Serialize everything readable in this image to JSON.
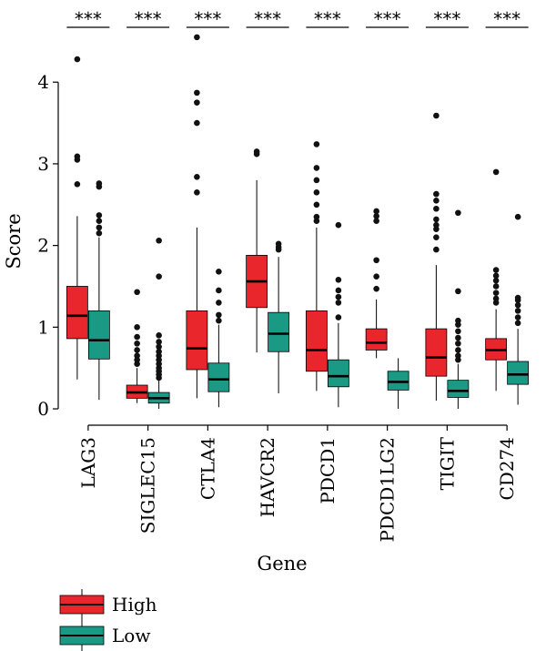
{
  "chart_data": {
    "type": "box",
    "title": "",
    "xlabel": "Gene",
    "ylabel": "Score",
    "ylim": [
      -0.1,
      4.95
    ],
    "yticks": [
      0,
      1,
      2,
      3,
      4
    ],
    "yticks_labels": [
      "0",
      "1",
      "2",
      "3",
      "4"
    ],
    "categories": [
      "LAG3",
      "SIGLEC15",
      "CTLA4",
      "HAVCR2",
      "PDCD1",
      "PDCD1LG2",
      "TIGIT",
      "CD274"
    ],
    "significance": [
      "***",
      "***",
      "***",
      "***",
      "***",
      "***",
      "***",
      "***"
    ],
    "legend": {
      "position": "bottom-left",
      "entries": [
        {
          "label": "High",
          "color": "#e8262b"
        },
        {
          "label": "Low",
          "color": "#1a9a85"
        }
      ]
    },
    "series": [
      {
        "name": "High",
        "color": "#e8262b",
        "boxes": [
          {
            "min": 0.36,
            "q1": 0.86,
            "median": 1.14,
            "q3": 1.5,
            "max": 2.36,
            "outliers": [
              2.75,
              3.05,
              3.09,
              4.28
            ]
          },
          {
            "min": 0.07,
            "q1": 0.13,
            "median": 0.2,
            "q3": 0.29,
            "max": 0.5,
            "outliers": [
              0.55,
              0.6,
              0.65,
              0.72,
              0.8,
              0.88,
              1.0,
              1.43
            ]
          },
          {
            "min": 0.13,
            "q1": 0.48,
            "median": 0.74,
            "q3": 1.2,
            "max": 2.22,
            "outliers": [
              2.65,
              2.84,
              3.5,
              3.75,
              3.87,
              4.55
            ]
          },
          {
            "min": 0.69,
            "q1": 1.24,
            "median": 1.56,
            "q3": 1.88,
            "max": 2.8,
            "outliers": [
              3.12,
              3.15
            ]
          },
          {
            "min": 0.22,
            "q1": 0.46,
            "median": 0.72,
            "q3": 1.2,
            "max": 2.22,
            "outliers": [
              2.3,
              2.35,
              2.5,
              2.65,
              2.8,
              2.95,
              3.24
            ]
          },
          {
            "min": 0.62,
            "q1": 0.72,
            "median": 0.81,
            "q3": 0.98,
            "max": 1.34,
            "outliers": [
              1.47,
              1.62,
              1.82,
              2.3,
              2.36,
              2.42
            ]
          },
          {
            "min": 0.1,
            "q1": 0.4,
            "median": 0.63,
            "q3": 0.98,
            "max": 1.76,
            "outliers": [
              1.95,
              2.1,
              2.2,
              2.25,
              2.32,
              2.45,
              2.55,
              2.63,
              3.59
            ]
          },
          {
            "min": 0.22,
            "q1": 0.6,
            "median": 0.72,
            "q3": 0.86,
            "max": 1.22,
            "outliers": [
              1.3,
              1.35,
              1.42,
              1.5,
              1.57,
              1.63,
              1.7,
              2.9
            ]
          }
        ]
      },
      {
        "name": "Low",
        "color": "#1a9a85",
        "boxes": [
          {
            "min": 0.11,
            "q1": 0.61,
            "median": 0.84,
            "q3": 1.2,
            "max": 2.1,
            "outliers": [
              2.15,
              2.22,
              2.3,
              2.37,
              2.72,
              2.76
            ]
          },
          {
            "min": 0.0,
            "q1": 0.07,
            "median": 0.13,
            "q3": 0.2,
            "max": 0.35,
            "outliers": [
              0.38,
              0.42,
              0.46,
              0.5,
              0.55,
              0.6,
              0.65,
              0.7,
              0.76,
              0.82,
              0.9,
              1.62,
              2.06
            ]
          },
          {
            "min": 0.02,
            "q1": 0.21,
            "median": 0.36,
            "q3": 0.56,
            "max": 1.03,
            "outliers": [
              1.08,
              1.15,
              1.3,
              1.45,
              1.68
            ]
          },
          {
            "min": 0.19,
            "q1": 0.7,
            "median": 0.92,
            "q3": 1.18,
            "max": 1.86,
            "outliers": [
              1.95,
              1.98,
              2.02
            ]
          },
          {
            "min": 0.02,
            "q1": 0.27,
            "median": 0.4,
            "q3": 0.6,
            "max": 1.05,
            "outliers": [
              1.12,
              1.3,
              1.37,
              1.45,
              1.58,
              2.25
            ]
          },
          {
            "min": 0.0,
            "q1": 0.23,
            "median": 0.33,
            "q3": 0.46,
            "max": 0.62,
            "outliers": []
          },
          {
            "min": 0.0,
            "q1": 0.14,
            "median": 0.22,
            "q3": 0.35,
            "max": 0.55,
            "outliers": [
              0.6,
              0.65,
              0.72,
              0.8,
              0.87,
              0.95,
              1.03,
              1.08,
              1.44,
              2.4
            ]
          },
          {
            "min": 0.05,
            "q1": 0.3,
            "median": 0.42,
            "q3": 0.58,
            "max": 0.98,
            "outliers": [
              1.05,
              1.12,
              1.2,
              1.27,
              1.33,
              1.36,
              2.35
            ]
          }
        ]
      }
    ]
  }
}
